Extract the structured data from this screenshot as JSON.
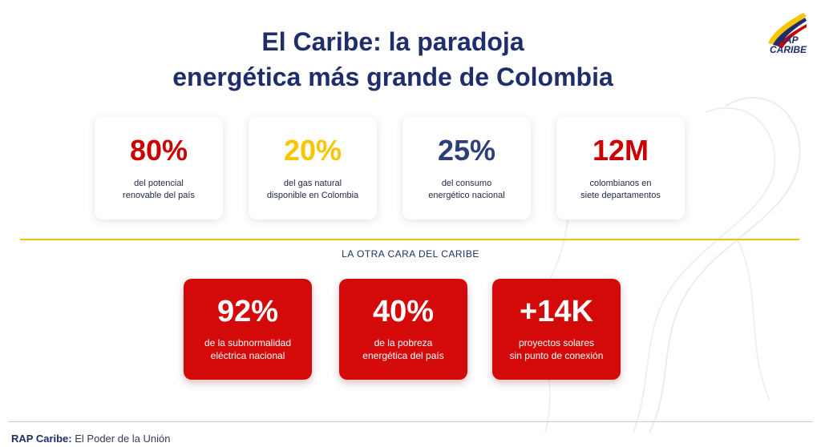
{
  "title": {
    "strong": "El Caribe:",
    "rest_line1": "la paradoja",
    "line2": "energética más grande de Colombia"
  },
  "logo": {
    "line1": "RAP",
    "line2": "CARIBE"
  },
  "stats": [
    {
      "value": "80%",
      "line1": "del potencial",
      "line2": "renovable del país",
      "color": "#cc0000"
    },
    {
      "value": "20%",
      "line1": "del gas natural",
      "line2": "disponible en Colombia",
      "color": "#f7c600"
    },
    {
      "value": "25%",
      "line1": "del consumo",
      "line2": "energético nacional",
      "color": "#2c3f78"
    },
    {
      "value": "12M",
      "line1": "colombianos en",
      "line2": "siete departamentos",
      "color": "#cc0000"
    }
  ],
  "section_label": "LA OTRA CARA DEL CARIBE",
  "red_stats": [
    {
      "value": "92%",
      "line1": "de la subnormalidad",
      "line2": "eléctrica nacional"
    },
    {
      "value": "40%",
      "line1": "de la pobreza",
      "line2": "energética del país"
    },
    {
      "value": "+14K",
      "line1": "proyectos solares",
      "line2": "sin punto de conexión"
    }
  ],
  "footer": {
    "brand": "RAP Caribe:",
    "tagline": "El Poder de la Unión"
  },
  "colors": {
    "navy": "#1f2e6b",
    "red": "#d40a0a",
    "yellow": "#f2c200"
  }
}
